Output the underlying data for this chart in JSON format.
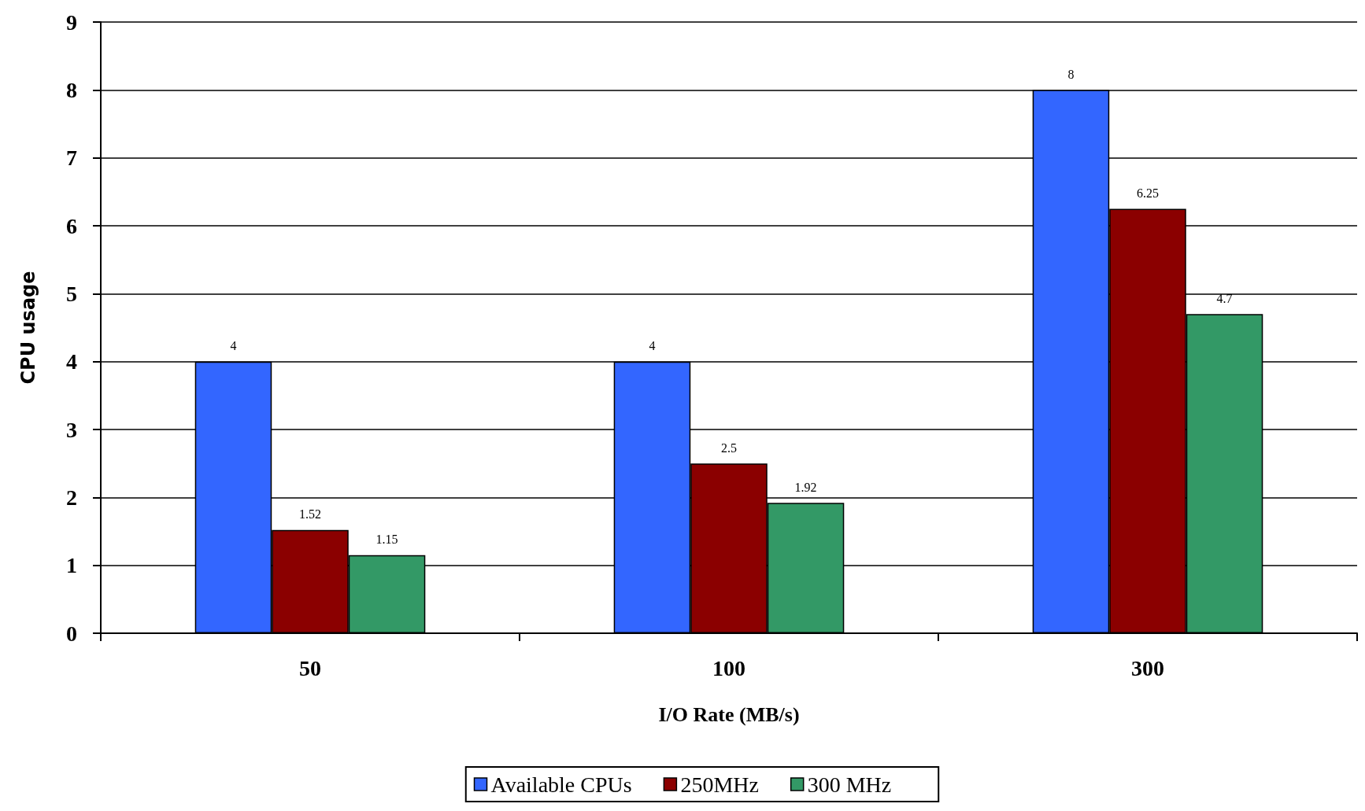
{
  "chart_data": {
    "type": "bar",
    "xlabel": "I/O Rate (MB/s)",
    "ylabel": "CPU usage",
    "categories": [
      "50",
      "100",
      "300"
    ],
    "series": [
      {
        "name": "Available CPUs",
        "color": "#3366ff",
        "values": [
          4,
          4,
          8
        ]
      },
      {
        "name": "250MHz",
        "color": "#8b0000",
        "values": [
          1.52,
          2.5,
          6.25
        ]
      },
      {
        "name": "300 MHz",
        "color": "#339966",
        "values": [
          1.15,
          1.92,
          4.7
        ]
      }
    ],
    "ylim": [
      0,
      9
    ],
    "yticks": [
      0,
      1,
      2,
      3,
      4,
      5,
      6,
      7,
      8,
      9
    ],
    "grid": "y",
    "legend": "bottom",
    "data_labels": true
  }
}
